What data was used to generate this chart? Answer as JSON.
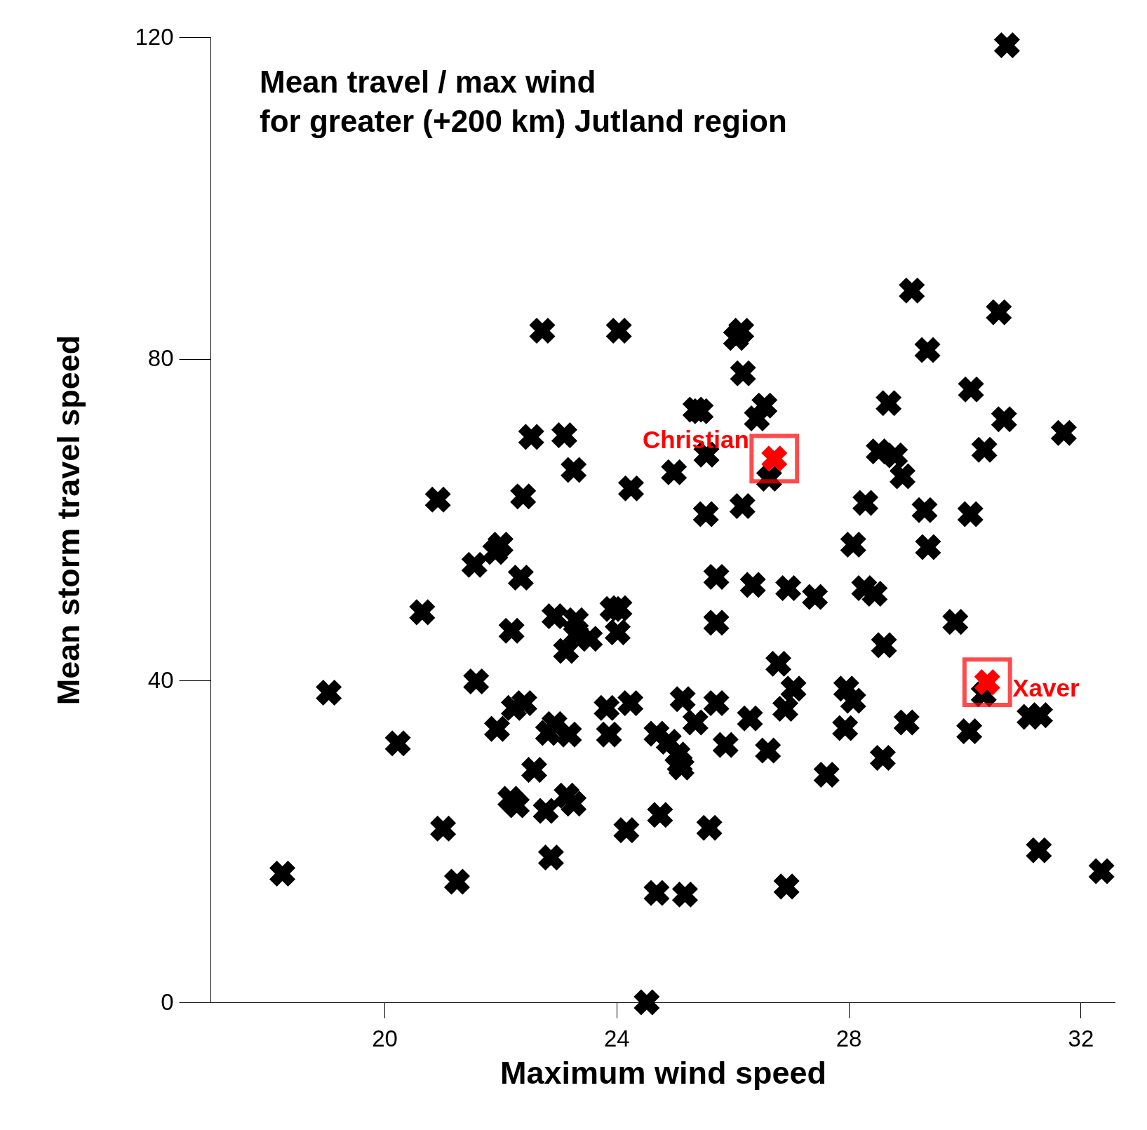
{
  "chart_data": {
    "type": "scatter",
    "title": "Mean travel / max wind\nfor greater (+200 km) Jutland region",
    "xlabel": "Maximum wind speed",
    "ylabel": "Mean storm travel speed",
    "marker": "cross",
    "grid": false,
    "xlim": [
      17,
      32.6
    ],
    "ylim": [
      0,
      120
    ],
    "xticks": [
      20,
      24,
      28,
      32
    ],
    "yticks": [
      0,
      40,
      80,
      120
    ],
    "series": [
      {
        "color": "#000000",
        "x": [
          30.73,
          22.72,
          24.04,
          26.15,
          26.06,
          29.09,
          30.59,
          29.36,
          26.18,
          30.11,
          28.69,
          26.55,
          26.42,
          25.36,
          25.45,
          30.68,
          31.71,
          22.53,
          23.1,
          30.34,
          25.55,
          28.52,
          28.8,
          23.26,
          24.99,
          28.93,
          26.63,
          24.25,
          20.92,
          22.39,
          28.29,
          26.17,
          25.54,
          29.31,
          30.1,
          22.0,
          21.91,
          28.08,
          29.37,
          21.55,
          22.35,
          25.72,
          26.35,
          26.96,
          27.42,
          28.27,
          28.45,
          20.65,
          22.93,
          23.3,
          23.93,
          24.05,
          25.72,
          29.84,
          22.19,
          24.02,
          23.3,
          23.54,
          23.13,
          28.61,
          26.79,
          21.58,
          19.04,
          27.05,
          27.96,
          28.08,
          30.33,
          31.12,
          31.3,
          22.41,
          22.23,
          23.83,
          24.24,
          25.14,
          25.72,
          26.91,
          26.3,
          25.36,
          22.93,
          21.94,
          20.23,
          27.94,
          29.0,
          30.08,
          22.82,
          23.18,
          23.87,
          24.69,
          24.9,
          25.88,
          25.05,
          25.12,
          25.09,
          26.61,
          28.59,
          22.58,
          27.62,
          22.17,
          22.28,
          23.14,
          23.26,
          22.78,
          21.01,
          24.75,
          24.17,
          25.6,
          22.87,
          18.24,
          21.25,
          24.69,
          25.18,
          26.93,
          31.28,
          32.36,
          24.52
        ],
        "values": [
          119.0,
          83.5,
          83.5,
          83.5,
          82.6,
          88.5,
          85.8,
          81.1,
          78.2,
          76.2,
          74.5,
          74.2,
          72.6,
          73.7,
          73.5,
          72.5,
          70.8,
          70.3,
          70.5,
          68.7,
          68.1,
          68.5,
          68.0,
          66.2,
          65.9,
          65.4,
          65.1,
          63.9,
          62.5,
          62.9,
          62.1,
          61.7,
          60.7,
          61.2,
          60.7,
          56.9,
          56.0,
          56.9,
          56.6,
          54.4,
          52.8,
          52.9,
          51.9,
          51.5,
          50.4,
          51.5,
          50.8,
          48.5,
          48.0,
          47.5,
          48.9,
          49.0,
          47.2,
          47.3,
          46.2,
          46.0,
          45.7,
          45.2,
          43.7,
          44.4,
          42.1,
          39.9,
          38.5,
          39.0,
          39.0,
          37.5,
          38.3,
          35.5,
          35.7,
          37.2,
          36.6,
          36.6,
          37.2,
          37.7,
          37.2,
          36.5,
          35.3,
          34.8,
          34.6,
          34.0,
          32.2,
          34.1,
          34.8,
          33.7,
          33.5,
          33.3,
          33.3,
          33.4,
          32.4,
          32.0,
          30.8,
          29.2,
          29.7,
          31.3,
          30.4,
          28.9,
          28.3,
          25.3,
          24.5,
          25.7,
          24.7,
          23.8,
          21.6,
          23.3,
          21.4,
          21.7,
          18.0,
          16.0,
          15.0,
          13.6,
          13.4,
          14.4,
          18.9,
          16.3,
          0.0
        ]
      },
      {
        "color": "#ff0000",
        "x": [
          26.72,
          30.39
        ],
        "values": [
          67.6,
          39.8
        ]
      }
    ],
    "annotations": [
      {
        "text": "Christian",
        "x": 26.72,
        "y": 67.6
      },
      {
        "text": "Xaver",
        "x": 30.39,
        "y": 39.8
      }
    ]
  }
}
